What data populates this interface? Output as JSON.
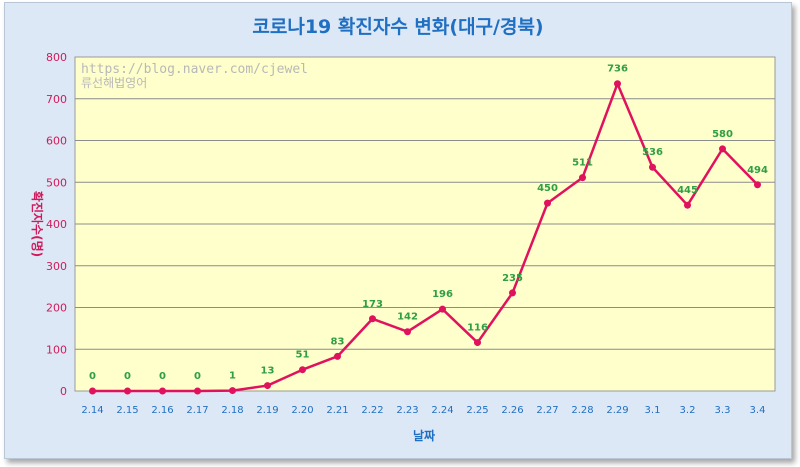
{
  "chart_data": {
    "type": "line",
    "title": "코로나19 확진자수 변화(대구/경북)",
    "xlabel": "날짜",
    "ylabel": "확진자수(명)",
    "ylim": [
      0,
      800
    ],
    "yticks": [
      0,
      100,
      200,
      300,
      400,
      500,
      600,
      700,
      800
    ],
    "grid": true,
    "categories": [
      "2.14",
      "2.15",
      "2.16",
      "2.17",
      "2.18",
      "2.19",
      "2.20",
      "2.21",
      "2.22",
      "2.23",
      "2.24",
      "2.25",
      "2.26",
      "2.27",
      "2.28",
      "2.29",
      "3.1",
      "3.2",
      "3.3",
      "3.4"
    ],
    "series": [
      {
        "values": [
          0,
          0,
          0,
          0,
          1,
          13,
          51,
          83,
          173,
          142,
          196,
          116,
          235,
          450,
          511,
          736,
          536,
          445,
          580,
          494
        ]
      }
    ],
    "colors": {
      "line": "#e0125e",
      "marker": "#e0125e",
      "data_label": "#2f9e44",
      "plot_bg": "#ffffcc",
      "frame_bg": "#dde8f6",
      "title": "#1f6fc2"
    }
  },
  "watermark": {
    "url": "https://blog.naver.com/cjewel",
    "name": "류선해법영어"
  }
}
